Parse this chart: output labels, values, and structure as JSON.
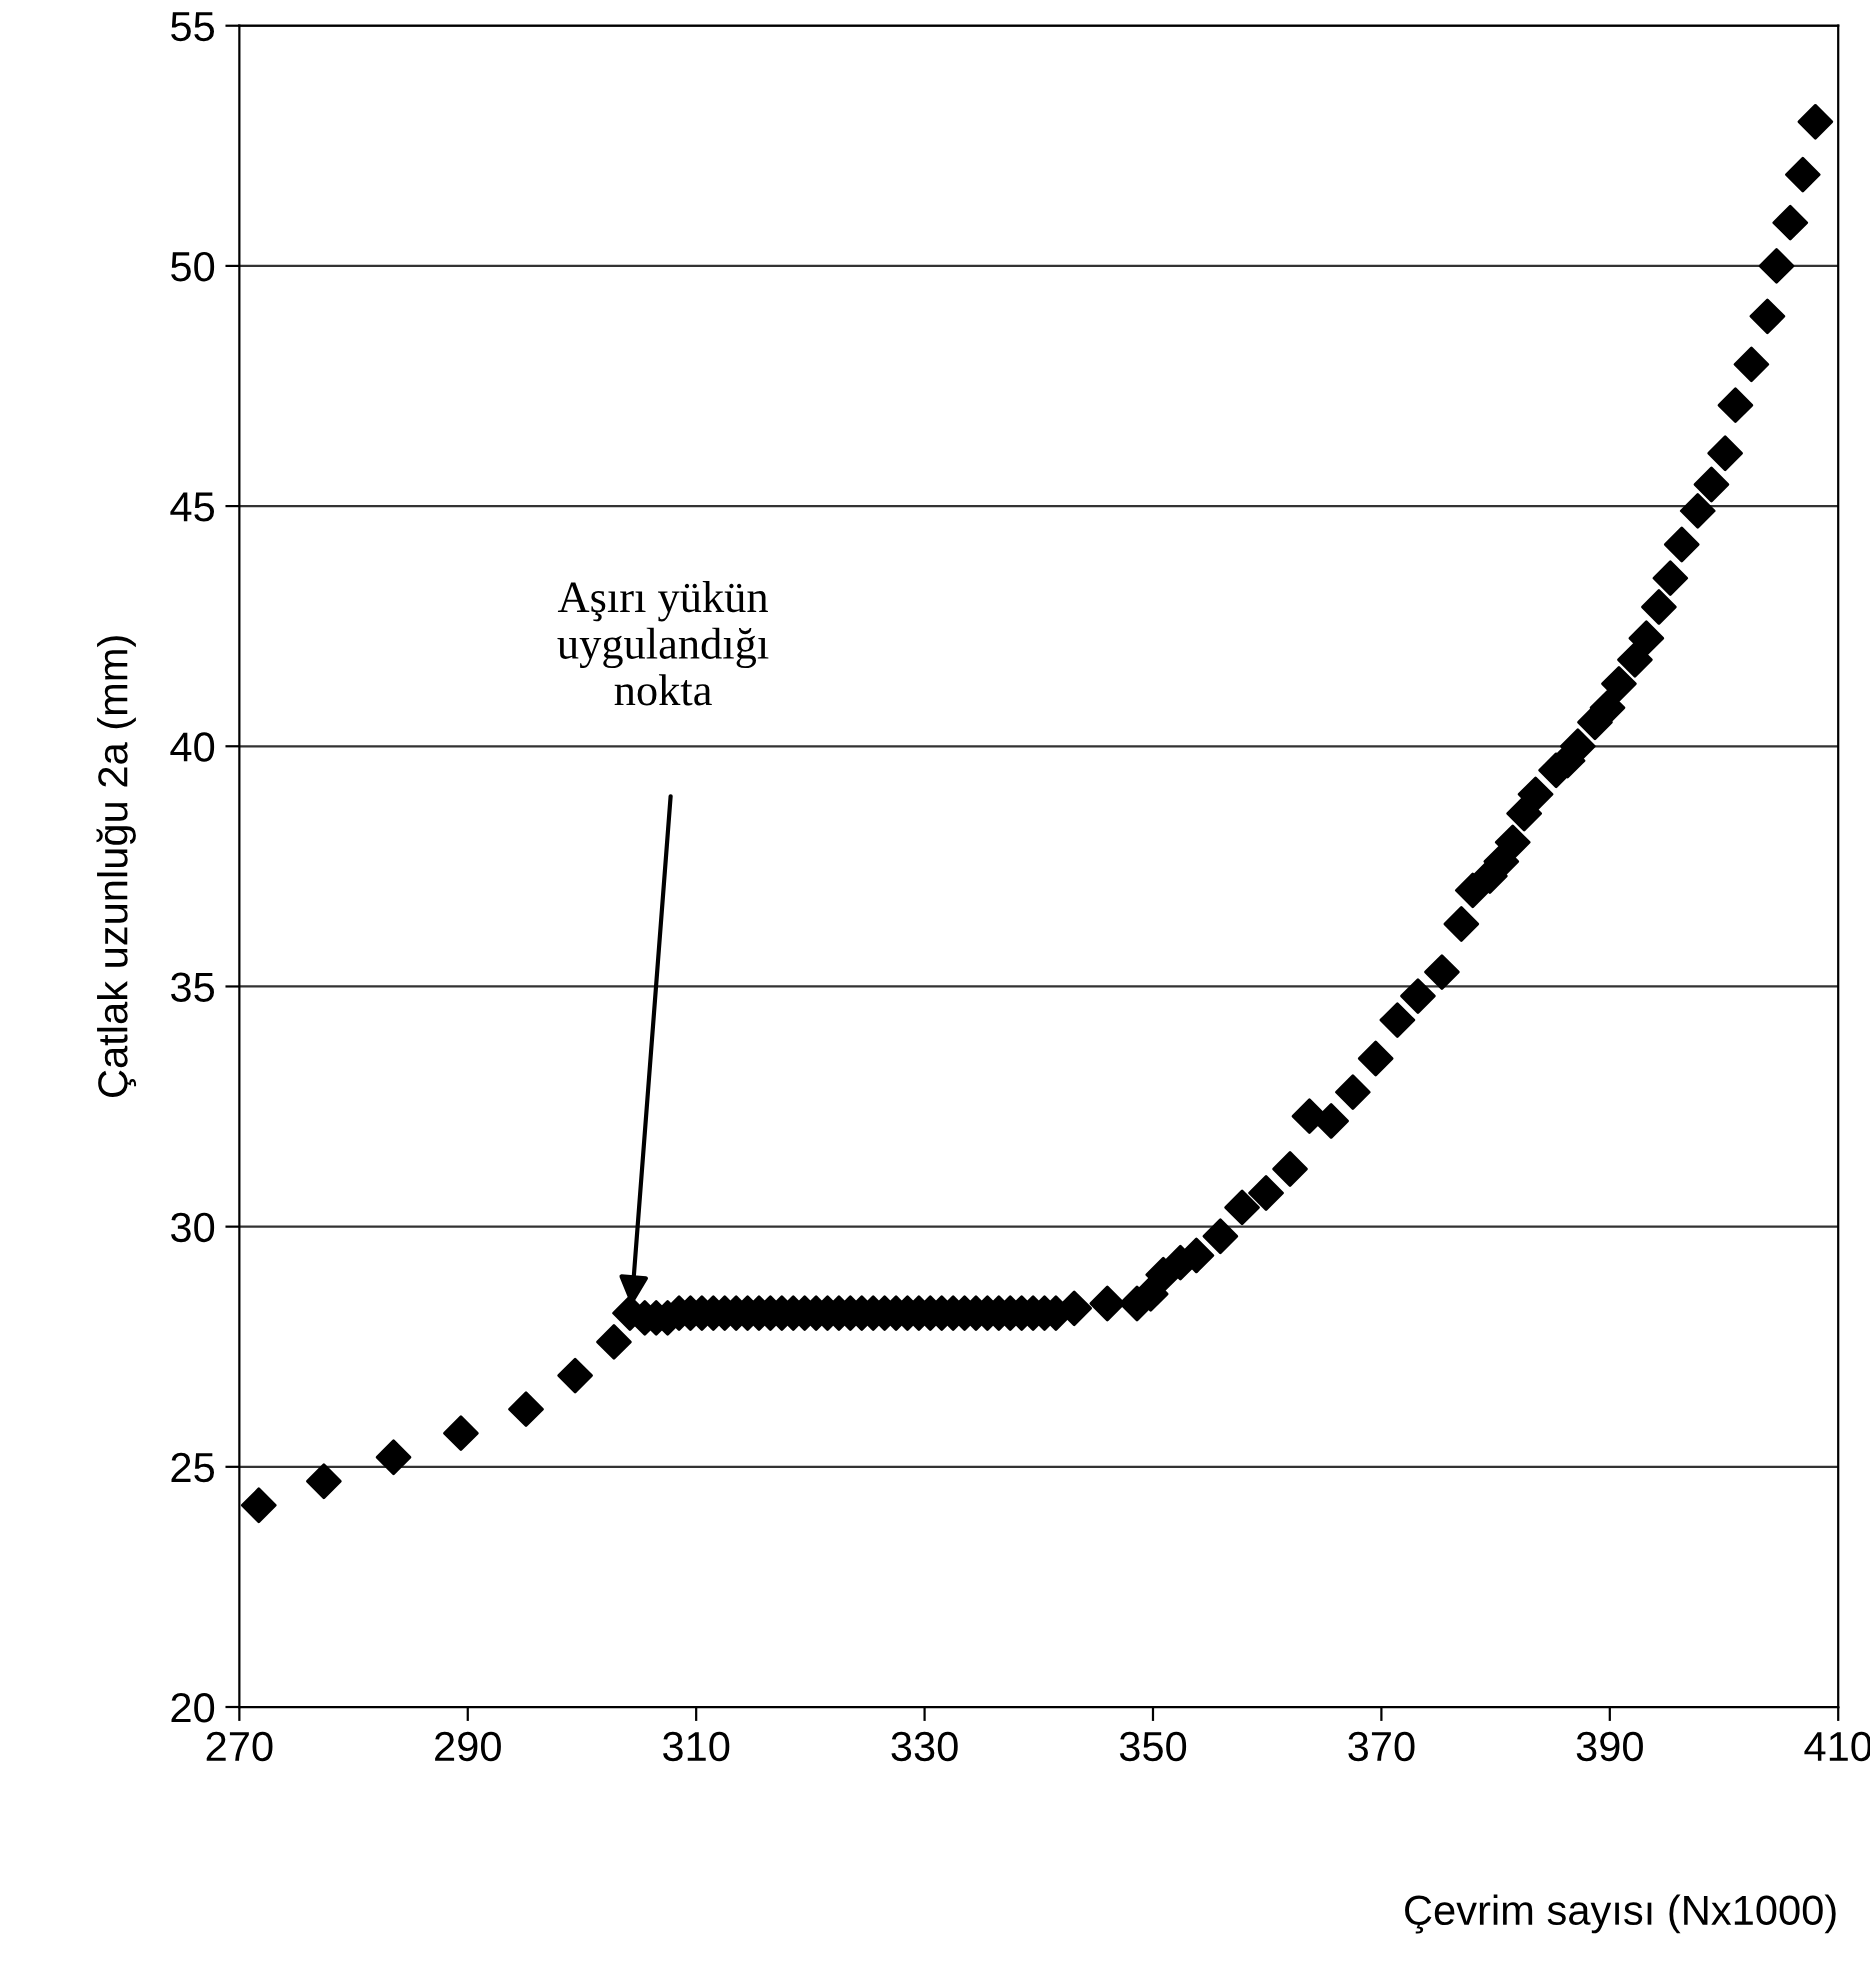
{
  "chart_data": {
    "type": "scatter",
    "xlabel": "Çevrim sayısı (Nx1000)",
    "ylabel": "Çatlak uzunluğu 2a (mm)",
    "annotations": [
      "Aşırı yükün\nuygulandığı\nnokta"
    ],
    "xlim": [
      270,
      410
    ],
    "xticks": [
      270,
      290,
      310,
      330,
      350,
      370,
      390,
      410
    ],
    "ylim": [
      20,
      55
    ],
    "yticks": [
      20,
      25,
      30,
      35,
      40,
      45,
      50,
      55
    ],
    "grid": "y",
    "marker": "diamond",
    "legend": false,
    "series": [
      {
        "color": "#000000",
        "x": [
          271.7,
          277.4,
          283.5,
          289.4,
          295.1,
          299.4,
          302.8,
          304.2,
          305.5,
          306.5,
          307.5,
          308.5,
          309.5,
          310.5,
          311.5,
          312.5,
          313.5,
          314.5,
          315.5,
          316.5,
          317.5,
          318.5,
          319.5,
          320.5,
          321.5,
          322.5,
          323.5,
          324.5,
          325.5,
          326.5,
          327.5,
          328.5,
          329.5,
          330.5,
          331.5,
          332.5,
          333.5,
          334.5,
          335.5,
          336.5,
          337.5,
          338.5,
          339.5,
          340.5,
          341.5,
          343.1,
          346,
          348.6,
          349.8,
          350.9,
          352.4,
          353.8,
          355.9,
          357.8,
          359.9,
          362,
          363.7,
          365.6,
          367.5,
          369.5,
          371.4,
          373.2,
          375.3,
          377,
          378,
          379.5,
          380.5,
          381.5,
          382.5,
          383.5,
          385.3,
          386.3,
          387.2,
          388.7,
          389.8,
          390.8,
          392.2,
          393.2,
          394.3,
          395.3,
          396.3,
          397.7,
          398.9,
          400.1,
          401,
          402.4,
          403.8,
          404.6,
          405.8,
          406.9,
          408
        ],
        "values": [
          24.2,
          24.7,
          25.2,
          25.7,
          26.2,
          26.9,
          27.6,
          28.2,
          28.1,
          28.1,
          28.1,
          28.2,
          28.2,
          28.2,
          28.2,
          28.2,
          28.2,
          28.2,
          28.2,
          28.2,
          28.2,
          28.2,
          28.2,
          28.2,
          28.2,
          28.2,
          28.2,
          28.2,
          28.2,
          28.2,
          28.2,
          28.2,
          28.2,
          28.2,
          28.2,
          28.2,
          28.2,
          28.2,
          28.2,
          28.2,
          28.2,
          28.2,
          28.2,
          28.2,
          28.2,
          28.3,
          28.4,
          28.4,
          28.6,
          29.0,
          29.25,
          29.4,
          29.8,
          30.4,
          30.7,
          31.2,
          32.3,
          32.2,
          32.8,
          33.5,
          34.3,
          34.8,
          35.3,
          36.3,
          37.0,
          37.3,
          37.6,
          38.0,
          38.6,
          39.0,
          39.5,
          39.7,
          40.0,
          40.5,
          40.8,
          41.3,
          41.8,
          42.25,
          42.9,
          43.5,
          44.2,
          44.9,
          45.45,
          46.1,
          47.1,
          47.95,
          48.95,
          50.0,
          50.9,
          51.9,
          53.0
        ]
      }
    ]
  }
}
